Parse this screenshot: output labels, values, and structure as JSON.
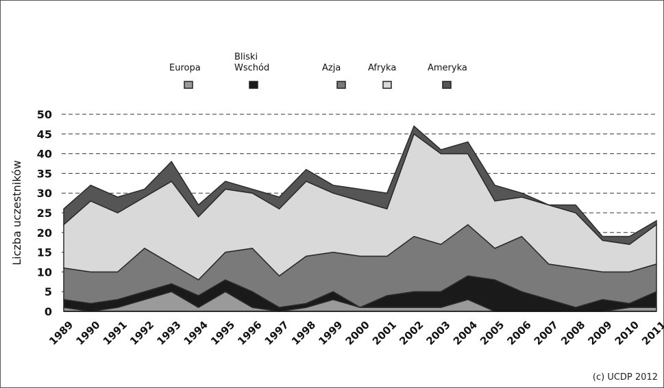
{
  "chart_data": {
    "type": "stacked_area",
    "ylabel": "Liczba uczestników",
    "credit": "(c) UCDP 2012",
    "categories": [
      "1989",
      "1990",
      "1991",
      "1992",
      "1993",
      "1994",
      "1995",
      "1996",
      "1997",
      "1998",
      "1999",
      "2000",
      "2001",
      "2002",
      "2003",
      "2004",
      "2005",
      "2006",
      "2007",
      "2008",
      "2009",
      "2010",
      "2011"
    ],
    "series": [
      {
        "name": "Europa",
        "color": "#9a9a9a",
        "values": [
          1,
          0,
          1,
          3,
          5,
          1,
          5,
          1,
          0,
          1,
          3,
          1,
          1,
          1,
          1,
          3,
          0,
          0,
          0,
          0,
          0,
          1,
          1
        ]
      },
      {
        "name": "Bliski Wschód",
        "color": "#1a1a1a",
        "values": [
          2,
          2,
          2,
          2,
          2,
          3,
          3,
          4,
          1,
          1,
          2,
          0,
          3,
          4,
          4,
          6,
          8,
          5,
          3,
          1,
          3,
          1,
          4
        ]
      },
      {
        "name": "Azja",
        "color": "#7a7a7a",
        "values": [
          8,
          8,
          7,
          11,
          5,
          4,
          7,
          11,
          8,
          12,
          10,
          13,
          10,
          14,
          12,
          13,
          8,
          14,
          9,
          10,
          7,
          8,
          7
        ]
      },
      {
        "name": "Afryka",
        "color": "#d9d9d9",
        "values": [
          11,
          18,
          15,
          13,
          21,
          16,
          16,
          14,
          17,
          19,
          15,
          14,
          12,
          26,
          23,
          18,
          12,
          10,
          15,
          14,
          8,
          7,
          10
        ]
      },
      {
        "name": "Ameryka",
        "color": "#555555",
        "values": [
          4,
          4,
          4,
          2,
          5,
          3,
          2,
          1,
          3,
          3,
          2,
          3,
          4,
          2,
          1,
          3,
          4,
          1,
          0,
          2,
          1,
          2,
          1
        ]
      }
    ],
    "ylim": [
      0,
      50
    ],
    "yticks": [
      0,
      5,
      10,
      15,
      20,
      25,
      30,
      35,
      40,
      45,
      50
    ],
    "grid": true
  }
}
